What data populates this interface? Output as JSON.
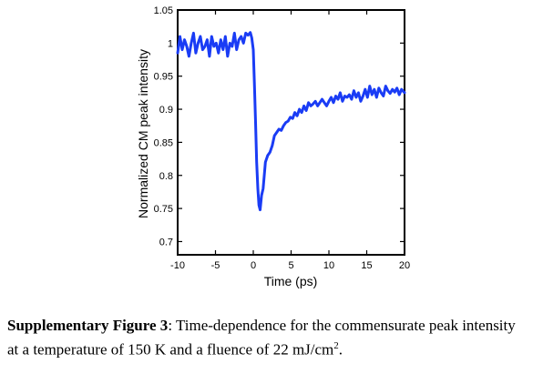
{
  "chart_data": {
    "type": "line",
    "xlabel": "Time (ps)",
    "ylabel": "Normalized CM peak intensity",
    "xlim": [
      -10,
      20
    ],
    "ylim": [
      0.68,
      1.05
    ],
    "xticks": [
      -10,
      -5,
      0,
      5,
      10,
      15,
      20
    ],
    "yticks": [
      0.7,
      0.75,
      0.8,
      0.85,
      0.9,
      0.95,
      1,
      1.05
    ],
    "xtick_labels": [
      "-10",
      "-5",
      "0",
      "5",
      "10",
      "15",
      "20"
    ],
    "ytick_labels": [
      "0.7",
      "0.75",
      "0.8",
      "0.85",
      "0.9",
      "0.95",
      "1",
      "1.05"
    ],
    "grid": false,
    "line_color": "#1a3cf5",
    "series": [
      {
        "x": [
          -10.0,
          -9.7,
          -9.4,
          -9.1,
          -8.8,
          -8.5,
          -8.2,
          -7.9,
          -7.6,
          -7.3,
          -7.0,
          -6.7,
          -6.4,
          -6.1,
          -5.8,
          -5.5,
          -5.2,
          -4.9,
          -4.6,
          -4.3,
          -4.0,
          -3.7,
          -3.4,
          -3.1,
          -2.8,
          -2.5,
          -2.2,
          -1.9,
          -1.6,
          -1.3,
          -1.0,
          -0.7,
          -0.4,
          -0.2,
          0.0,
          0.15,
          0.3,
          0.45,
          0.6,
          0.75,
          0.9,
          1.1,
          1.3,
          1.6,
          1.9,
          2.2,
          2.5,
          2.8,
          3.1,
          3.4,
          3.7,
          4.0,
          4.3,
          4.6,
          4.9,
          5.2,
          5.5,
          5.8,
          6.1,
          6.4,
          6.7,
          7.0,
          7.3,
          7.6,
          7.9,
          8.2,
          8.5,
          8.8,
          9.1,
          9.4,
          9.7,
          10.0,
          10.3,
          10.6,
          10.9,
          11.2,
          11.5,
          11.8,
          12.1,
          12.4,
          12.7,
          13.0,
          13.3,
          13.6,
          13.9,
          14.2,
          14.5,
          14.8,
          15.1,
          15.4,
          15.7,
          16.0,
          16.3,
          16.6,
          16.9,
          17.2,
          17.5,
          17.8,
          18.1,
          18.4,
          18.7,
          19.0,
          19.3,
          19.6,
          20.0
        ],
        "y": [
          0.985,
          1.01,
          0.99,
          1.005,
          0.995,
          0.98,
          1.0,
          1.015,
          0.985,
          1.0,
          1.01,
          0.99,
          0.995,
          1.005,
          0.98,
          1.01,
          0.995,
          1.0,
          0.985,
          1.005,
          0.99,
          1.01,
          0.98,
          1.0,
          0.995,
          1.015,
          0.99,
          1.005,
          1.01,
          1.0,
          1.015,
          1.012,
          1.016,
          1.008,
          0.99,
          0.94,
          0.88,
          0.82,
          0.78,
          0.755,
          0.748,
          0.77,
          0.78,
          0.82,
          0.83,
          0.835,
          0.845,
          0.86,
          0.865,
          0.87,
          0.868,
          0.875,
          0.88,
          0.882,
          0.888,
          0.886,
          0.895,
          0.89,
          0.9,
          0.895,
          0.905,
          0.898,
          0.91,
          0.905,
          0.908,
          0.912,
          0.905,
          0.91,
          0.915,
          0.91,
          0.905,
          0.912,
          0.918,
          0.91,
          0.92,
          0.915,
          0.925,
          0.912,
          0.92,
          0.918,
          0.922,
          0.915,
          0.928,
          0.918,
          0.925,
          0.912,
          0.92,
          0.93,
          0.918,
          0.935,
          0.922,
          0.93,
          0.918,
          0.932,
          0.925,
          0.92,
          0.935,
          0.928,
          0.924,
          0.93,
          0.926,
          0.932,
          0.922,
          0.93,
          0.925
        ]
      }
    ]
  },
  "caption": {
    "label": "Supplementary Figure 3",
    "text": ": Time-dependence for the commensurate peak intensity at a temperature of 150 K and a fluence of 22 mJ/cm",
    "superscript": "2",
    "end": "."
  }
}
